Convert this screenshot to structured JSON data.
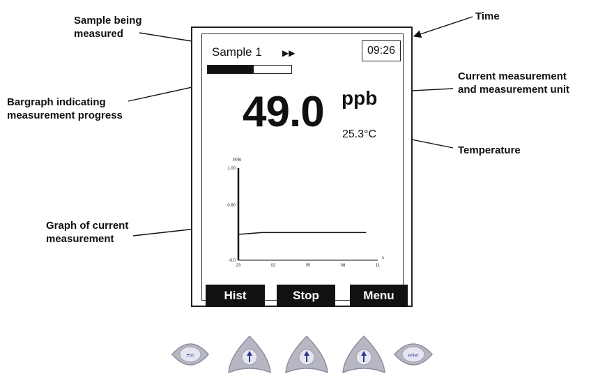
{
  "callouts": {
    "sample": [
      "Sample being",
      "measured"
    ],
    "time": "Time",
    "current": [
      "Current measurement",
      "and measurement unit"
    ],
    "bargraph": [
      "Bargraph indicating",
      "measurement progress"
    ],
    "temperature": "Temperature",
    "graph": [
      "Graph of current",
      "measurement"
    ]
  },
  "screen": {
    "sample_name": "Sample 1",
    "sample_arrow_glyph": "▶▶",
    "time": "09:26",
    "progress_fraction": 0.55,
    "reading": "49.0",
    "unit": "ppb",
    "temperature": "25.3°C"
  },
  "softkeys": [
    {
      "label": "Hist"
    },
    {
      "label": "Stop"
    },
    {
      "label": "Menu"
    }
  ],
  "chart_data": {
    "type": "line",
    "ylabel": "PPB",
    "xlabel": "",
    "y_tick_labels": [
      "1.00",
      "0.60",
      "-0.0"
    ],
    "x_tick_labels": [
      "23",
      "02",
      "05",
      "08",
      "11"
    ],
    "x_unit_label": "s",
    "series": [
      {
        "values": [
          {
            "x": 0,
            "y": 0.28
          },
          {
            "x": 1,
            "y": 0.3
          },
          {
            "x": 5.5,
            "y": 0.3
          }
        ]
      }
    ],
    "ylim": [
      0,
      1
    ],
    "xlim": [
      0,
      6
    ]
  },
  "hardware_buttons": [
    {
      "icon": "esc-key-icon",
      "label": "esc"
    },
    {
      "icon": "up-arrow-icon"
    },
    {
      "icon": "up-arrow-icon"
    },
    {
      "icon": "up-arrow-icon"
    },
    {
      "icon": "enter-key-icon",
      "label": "enter"
    }
  ],
  "colors": {
    "button_face": "#b7b7c4",
    "button_center": "#e6e6f0",
    "button_glyph": "#2a3a9a"
  }
}
